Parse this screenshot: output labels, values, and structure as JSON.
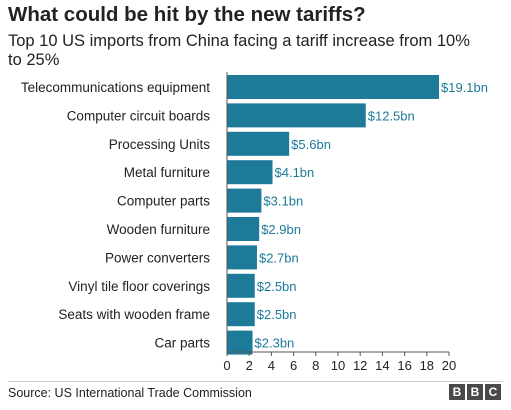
{
  "header": {
    "title": "What could be hit by the new tariffs?",
    "subtitle": "Top 10 US imports from China facing a tariff increase from 10% to 25%"
  },
  "footer": {
    "source": "Source: US International Trade Commission",
    "logo_letters": [
      "B",
      "B",
      "C"
    ]
  },
  "chart_data": {
    "type": "bar",
    "orientation": "horizontal",
    "categories": [
      "Telecommunications equipment",
      "Computer circuit boards",
      "Processing Units",
      "Metal furniture",
      "Computer parts",
      "Wooden furniture",
      "Power converters",
      "Vinyl tile floor coverings",
      "Seats with wooden frame",
      "Car parts"
    ],
    "values": [
      19.1,
      12.5,
      5.6,
      4.1,
      3.1,
      2.9,
      2.7,
      2.5,
      2.5,
      2.3
    ],
    "data_labels": [
      "$19.1bn",
      "$12.5bn",
      "$5.6bn",
      "$4.1bn",
      "$3.1bn",
      "$2.9bn",
      "$2.7bn",
      "$2.5bn",
      "$2.5bn",
      "$2.3bn"
    ],
    "xticks": [
      0,
      2,
      4,
      6,
      8,
      10,
      12,
      14,
      16,
      18,
      20
    ],
    "xlim": [
      0,
      20
    ],
    "grid": false,
    "colors": {
      "bar": "#1d7b99",
      "label": "#1d7b99",
      "axis": "#555555"
    }
  }
}
